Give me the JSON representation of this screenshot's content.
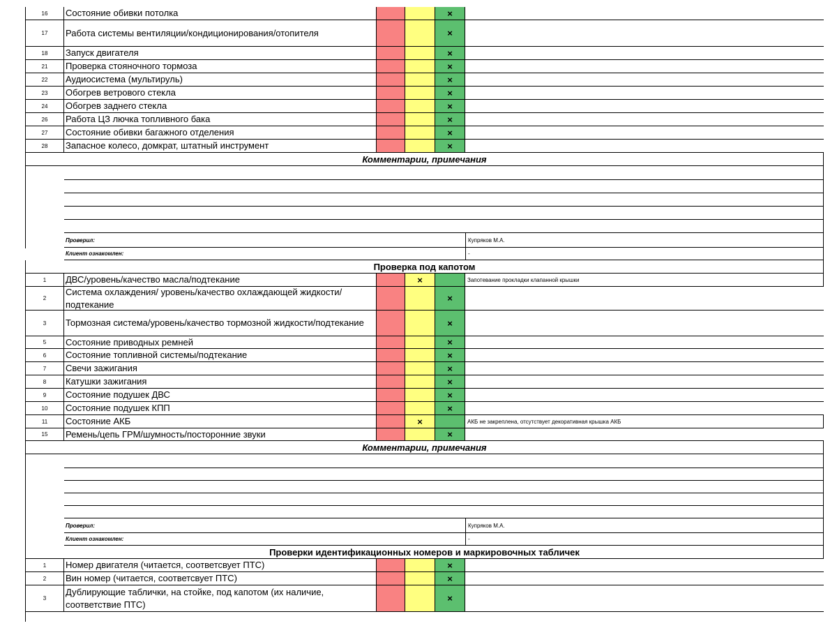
{
  "section1": {
    "rows": [
      {
        "num": "16",
        "text": "Состояние обивки потолка",
        "yellow": "",
        "green": "×",
        "note": ""
      },
      {
        "num": "17",
        "text": "Работа системы вентиляции/кондиционирования/отопителя",
        "yellow": "",
        "green": "×",
        "note": ""
      },
      {
        "num": "18",
        "text": "Запуск двигателя",
        "yellow": "",
        "green": "×",
        "note": ""
      },
      {
        "num": "21",
        "text": "Проверка стояночного тормоза",
        "yellow": "",
        "green": "×",
        "note": ""
      },
      {
        "num": "22",
        "text": "Аудиосистема (мультируль)",
        "yellow": "",
        "green": "×",
        "note": ""
      },
      {
        "num": "23",
        "text": "Обогрев ветрового стекла",
        "yellow": "",
        "green": "×",
        "note": ""
      },
      {
        "num": "24",
        "text": "Обогрев заднего стекла",
        "yellow": "",
        "green": "×",
        "note": ""
      },
      {
        "num": "26",
        "text": "Работа ЦЗ лючка топливного бака",
        "yellow": "",
        "green": "×",
        "note": ""
      },
      {
        "num": "27",
        "text": "Состояние обивки багажного отделения",
        "yellow": "",
        "green": "×",
        "note": ""
      },
      {
        "num": "28",
        "text": "Запасное колесо, домкрат, штатный инструмент",
        "yellow": "",
        "green": "×",
        "note": ""
      }
    ],
    "comments_title": "Комментарии, примечания",
    "checked_label": "Проверил:",
    "checked_value": "Купряков М.А.",
    "client_label": "Клиент ознакомлен:",
    "client_value": "-"
  },
  "section2": {
    "title": "Проверка под капотом",
    "rows": [
      {
        "num": "1",
        "text": "ДВС/уровень/качество масла/подтекание",
        "yellow": "×",
        "green": "",
        "note": "Запотевание прокладки клапанной крышки"
      },
      {
        "num": "2",
        "text": "Система охлаждения/ уровень/качество охлаждающей жидкости/подтекание",
        "yellow": "",
        "green": "×",
        "note": ""
      },
      {
        "num": "3",
        "text": "Тормозная система/уровень/качество тормозной жидкости/подтекание",
        "yellow": "",
        "green": "×",
        "note": ""
      },
      {
        "num": "5",
        "text": "Состояние приводных ремней",
        "yellow": "",
        "green": "×",
        "note": ""
      },
      {
        "num": "6",
        "text": "Состояние топливной системы/подтекание",
        "yellow": "",
        "green": "×",
        "note": ""
      },
      {
        "num": "7",
        "text": "Свечи зажигания",
        "yellow": "",
        "green": "×",
        "note": ""
      },
      {
        "num": "8",
        "text": "Катушки зажигания",
        "yellow": "",
        "green": "×",
        "note": ""
      },
      {
        "num": "9",
        "text": "Состояние подушек ДВС",
        "yellow": "",
        "green": "×",
        "note": ""
      },
      {
        "num": "10",
        "text": "Состояние подушек КПП",
        "yellow": "",
        "green": "×",
        "note": ""
      },
      {
        "num": "11",
        "text": "Состояние АКБ",
        "yellow": "×",
        "green": "",
        "note": "АКБ не закреплена, отсутствует декоративная крышка АКБ"
      },
      {
        "num": "15",
        "text": "Ремень/цепь ГРМ/шумность/посторонние звуки",
        "yellow": "",
        "green": "×",
        "note": ""
      }
    ],
    "comments_title": "Комментарии, примечания",
    "checked_label": "Проверил:",
    "checked_value": "Купряков М.А.",
    "client_label": "Клиент ознакомлен:",
    "client_value": "-"
  },
  "section3": {
    "title": "Проверки идентификационных номеров и маркировочных табличек",
    "rows": [
      {
        "num": "1",
        "text": "Номер двигателя (читается, соответсвует ПТС)",
        "yellow": "",
        "green": "×",
        "note": ""
      },
      {
        "num": "2",
        "text": "Вин номер (читается, соответсвует ПТС)",
        "yellow": "",
        "green": "×",
        "note": ""
      },
      {
        "num": "3",
        "text": "Дублирующие таблички, на стойке, под капотом (их наличие, соответствие ПТС)",
        "yellow": "",
        "green": "×",
        "note": ""
      }
    ]
  }
}
